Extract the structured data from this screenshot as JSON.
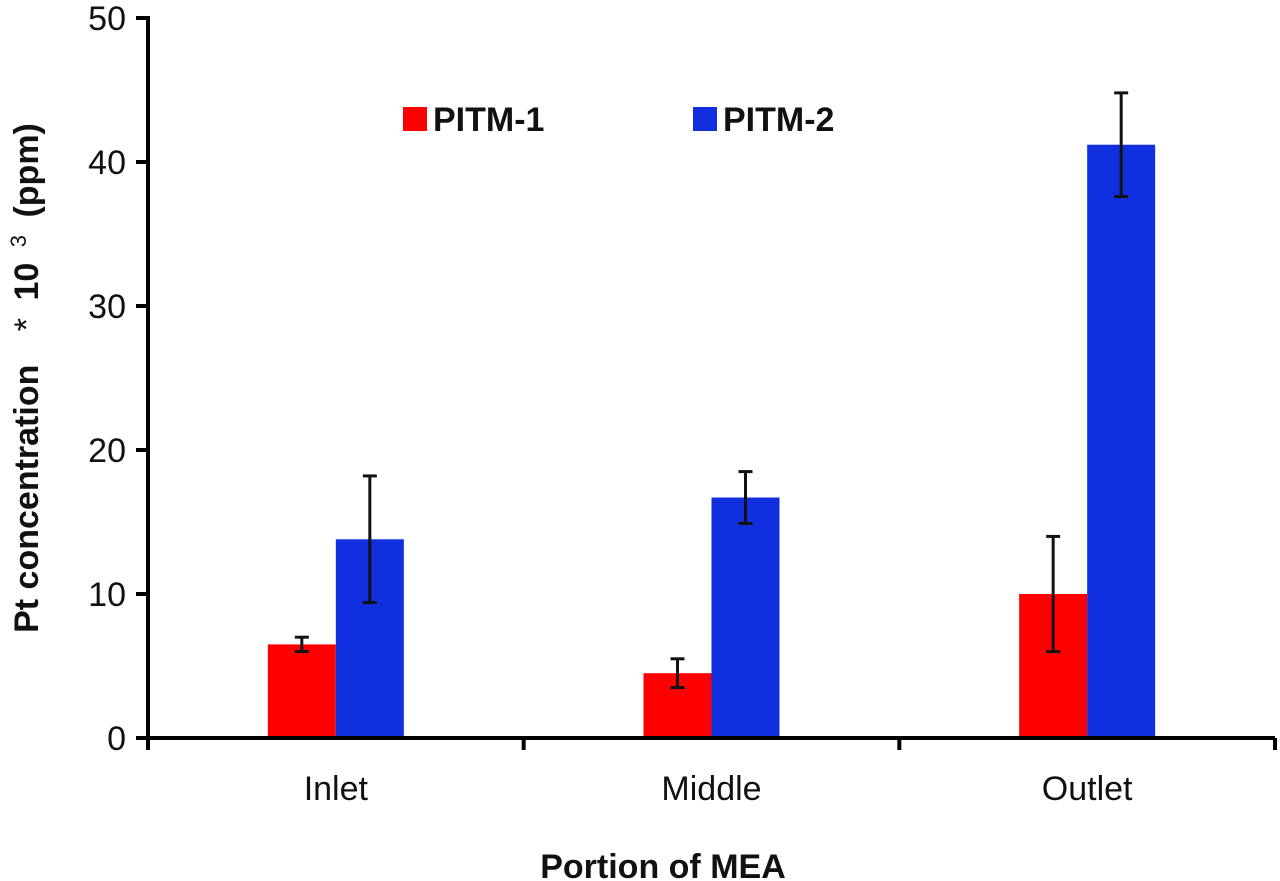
{
  "chart_data": {
    "type": "bar",
    "title": "",
    "xlabel": "Portion of MEA",
    "ylabel": {
      "main": "Pt concentration",
      "star": "*",
      "base": "10",
      "exp": "3",
      "unit": "(ppm)"
    },
    "categories": [
      "Inlet",
      "Middle",
      "Outlet"
    ],
    "ylim": [
      0,
      50
    ],
    "yticks": [
      0,
      10,
      20,
      30,
      40,
      50
    ],
    "ytick_labels": [
      "0",
      "10",
      "20",
      "30",
      "40",
      "50"
    ],
    "grid": false,
    "legend_position": "top",
    "series": [
      {
        "name": "PITM-1",
        "color": "#ff0000",
        "values": [
          6.5,
          4.5,
          10.0
        ],
        "errors": [
          0.5,
          1.0,
          4.0
        ]
      },
      {
        "name": "PITM-2",
        "color": "#1030e0",
        "values": [
          13.8,
          16.7,
          41.2
        ],
        "errors": [
          4.4,
          1.8,
          3.6
        ]
      }
    ]
  }
}
